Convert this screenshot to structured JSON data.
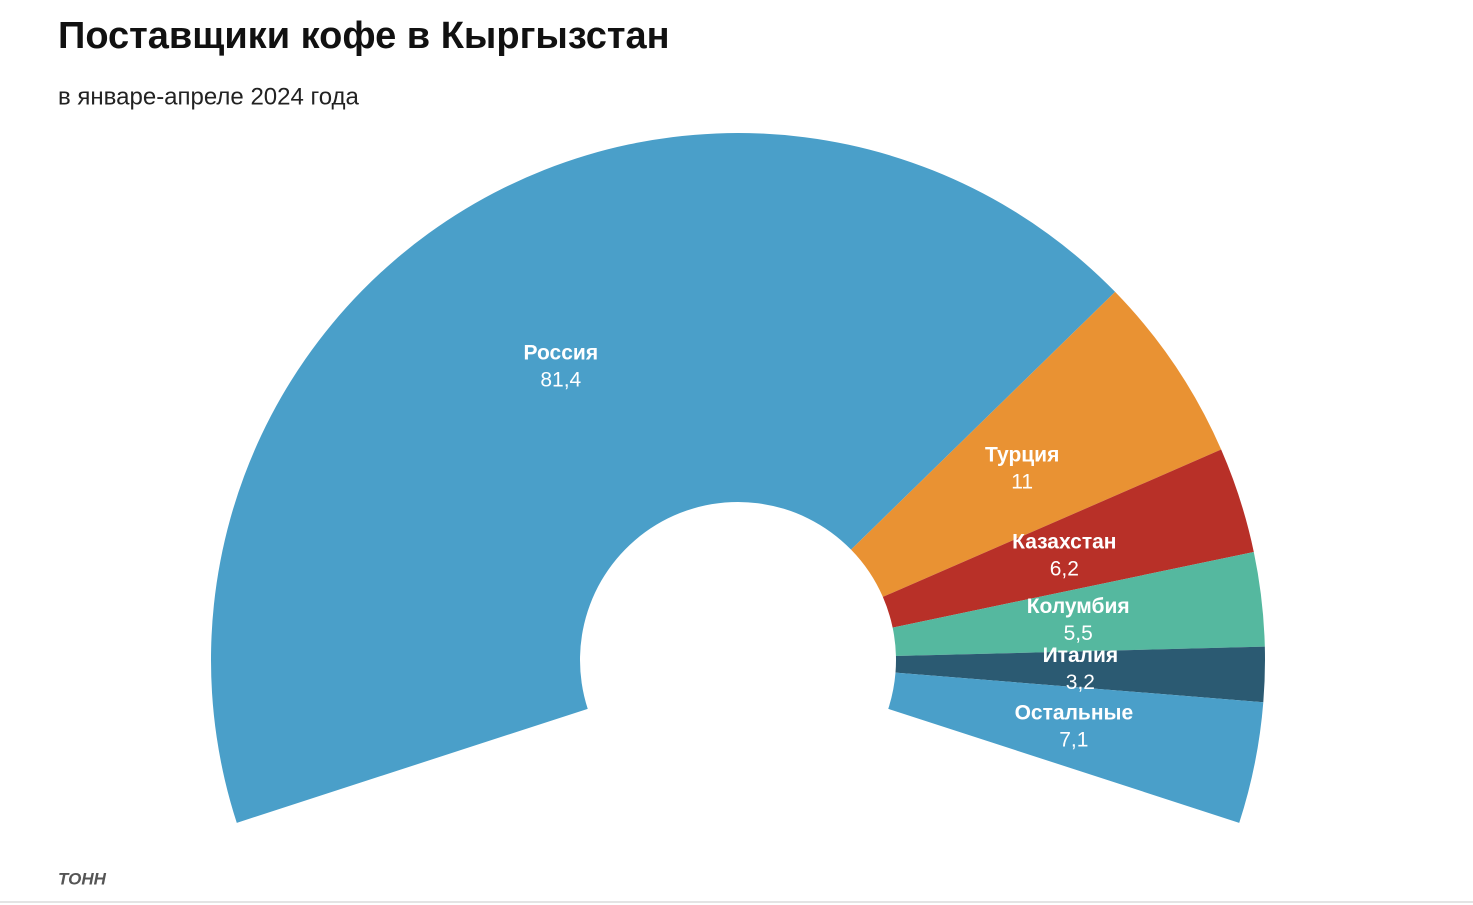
{
  "chart_data": {
    "type": "pie",
    "title": "Поставщики кофе в Кыргызстан",
    "subtitle": "в январе-апреле 2024 года",
    "unit": "ТОНН",
    "categories": [
      "Россия",
      "Турция",
      "Казахстан",
      "Колумбия",
      "Италия",
      "Остальные"
    ],
    "values": [
      81.4,
      11,
      6.2,
      5.5,
      3.2,
      7.1
    ],
    "value_labels": [
      "81,4",
      "11",
      "6,2",
      "5,5",
      "3,2",
      "7,1"
    ],
    "colors": [
      "#4a9fc9",
      "#e99233",
      "#b83028",
      "#55b89f",
      "#2b5a72",
      "#4a9fc9"
    ]
  }
}
